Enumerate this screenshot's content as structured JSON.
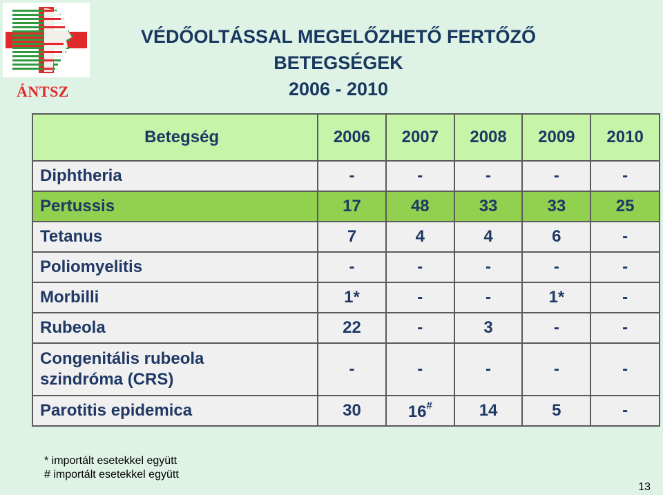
{
  "logo": {
    "caption": "ÁNTSZ"
  },
  "title": {
    "line1": "VÉDŐOLTÁSSAL MEGELŐZHETŐ FERTŐZŐ",
    "line2": "BETEGSÉGEK",
    "line3": "2006 - 2010"
  },
  "table": {
    "header": {
      "disease": "Betegség",
      "years": [
        "2006",
        "2007",
        "2008",
        "2009",
        "2010"
      ]
    },
    "rows": [
      {
        "name": "Diphtheria",
        "values": [
          "-",
          "-",
          "-",
          "-",
          "-"
        ]
      },
      {
        "name": "Pertussis",
        "values": [
          "17",
          "48",
          "33",
          "33",
          "25"
        ]
      },
      {
        "name": "Tetanus",
        "values": [
          "7",
          "4",
          "4",
          "6",
          "-"
        ]
      },
      {
        "name": "Poliomyelitis",
        "values": [
          "-",
          "-",
          "-",
          "-",
          "-"
        ]
      },
      {
        "name": "Morbilli",
        "values": [
          "1*",
          "-",
          "-",
          "1*",
          "-"
        ]
      },
      {
        "name": "Rubeola",
        "values": [
          "22",
          "-",
          "3",
          "-",
          "-"
        ]
      },
      {
        "name_line1": "Congenitális rubeola",
        "name_line2": "szindróma (CRS)",
        "values": [
          "-",
          "-",
          "-",
          "-",
          "-"
        ]
      },
      {
        "name": "Parotitis epidemica",
        "values": [
          "30",
          "16",
          "14",
          "5",
          "-"
        ],
        "mark_2007": "#"
      }
    ]
  },
  "footnotes": {
    "star": "* importált esetekkel együtt",
    "hash": "# importált esetekkel együtt"
  },
  "page_number": "13",
  "colors": {
    "background": "#dff2e6",
    "header_fill": "#c6f5a9",
    "highlight_fill": "#92d050",
    "row_fill": "#f0f0f0",
    "text": "#1f3864",
    "title": "#17375e",
    "logo_red": "#e0292a",
    "logo_green": "#2e9a3c"
  }
}
